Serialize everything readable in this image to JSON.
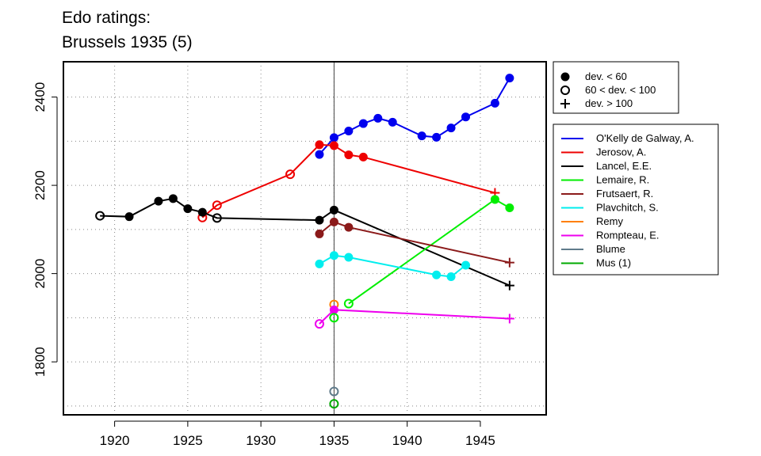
{
  "chart_data": {
    "type": "line",
    "title_line1": "Edo ratings:",
    "title_line2": "Brussels 1935 (5)",
    "xlabel": "",
    "ylabel": "",
    "xlim": [
      1916.5,
      1949.5
    ],
    "ylim": [
      1680,
      2480
    ],
    "xticks": [
      1920,
      1925,
      1930,
      1935,
      1940,
      1945
    ],
    "yticks": [
      1800,
      2000,
      2200,
      2400
    ],
    "grid": true,
    "reference_line_x": 1935,
    "marker_legend": [
      {
        "symbol": "filled",
        "label": "dev. < 60"
      },
      {
        "symbol": "open",
        "label": "60 < dev. < 100"
      },
      {
        "symbol": "plus",
        "label": "dev. > 100"
      }
    ],
    "legend_placement": "right",
    "series": [
      {
        "name": "O'Kelly de Galway, A.",
        "color": "#0000ee",
        "points": [
          [
            1934,
            2270,
            "f"
          ],
          [
            1935,
            2308,
            "f"
          ],
          [
            1936,
            2323,
            "f"
          ],
          [
            1937,
            2340,
            "f"
          ],
          [
            1938,
            2352,
            "f"
          ],
          [
            1939,
            2343,
            "f"
          ],
          [
            1941,
            2312,
            "f"
          ],
          [
            1942,
            2309,
            "f"
          ],
          [
            1943,
            2330,
            "f"
          ],
          [
            1944,
            2355,
            "f"
          ],
          [
            1946,
            2386,
            "f"
          ],
          [
            1947,
            2443,
            "f"
          ]
        ]
      },
      {
        "name": "Jerosov, A.",
        "color": "#ee0000",
        "points": [
          [
            1926,
            2127,
            "o"
          ],
          [
            1927,
            2155,
            "o"
          ],
          [
            1932,
            2225,
            "o"
          ],
          [
            1934,
            2292,
            "f"
          ],
          [
            1935,
            2290,
            "f"
          ],
          [
            1936,
            2269,
            "f"
          ],
          [
            1937,
            2264,
            "f"
          ],
          [
            1946,
            2183,
            "p"
          ]
        ]
      },
      {
        "name": "Lancel, E.E.",
        "color": "#000000",
        "points": [
          [
            1919,
            2131,
            "o"
          ],
          [
            1921,
            2129,
            "f"
          ],
          [
            1923,
            2164,
            "f"
          ],
          [
            1924,
            2170,
            "f"
          ],
          [
            1925,
            2147,
            "f"
          ],
          [
            1926,
            2139,
            "f"
          ],
          [
            1927,
            2126,
            "o"
          ],
          [
            1934,
            2121,
            "f"
          ],
          [
            1935,
            2144,
            "f"
          ],
          [
            1947,
            1973,
            "p"
          ]
        ]
      },
      {
        "name": "Lemaire, R.",
        "color": "#00ee00",
        "points": [
          [
            1936,
            1932,
            "o"
          ],
          [
            1946,
            2168,
            "f"
          ],
          [
            1947,
            2149,
            "f"
          ]
        ]
      },
      {
        "name": "Frutsaert, R.",
        "color": "#8b1a1a",
        "points": [
          [
            1934,
            2090,
            "f"
          ],
          [
            1935,
            2117,
            "f"
          ],
          [
            1936,
            2105,
            "f"
          ],
          [
            1947,
            2025,
            "p"
          ]
        ]
      },
      {
        "name": "Plavchitch, S.",
        "color": "#00eeee",
        "points": [
          [
            1934,
            2022,
            "f"
          ],
          [
            1935,
            2041,
            "f"
          ],
          [
            1936,
            2037,
            "f"
          ],
          [
            1942,
            1997,
            "f"
          ],
          [
            1943,
            1993,
            "f"
          ],
          [
            1944,
            2019,
            "f"
          ]
        ]
      },
      {
        "name": "Remy",
        "color": "#ff7f00",
        "points": [
          [
            1935,
            1930,
            "o"
          ]
        ]
      },
      {
        "name": "Rompteau, E.",
        "color": "#ee00ee",
        "points": [
          [
            1934,
            1886,
            "o"
          ],
          [
            1935,
            1918,
            "f"
          ],
          [
            1947,
            1898,
            "p"
          ]
        ]
      },
      {
        "name": "Blume",
        "color": "#607b8b",
        "points": [
          [
            1935,
            1733,
            "o"
          ]
        ]
      },
      {
        "name": "Mus (1)",
        "color": "#00aa00",
        "points": [
          [
            1935,
            1705,
            "o"
          ]
        ]
      }
    ],
    "overlay_points": [
      {
        "series": "Lemaire, R.",
        "point": [
          1935,
          1900,
          "o"
        ]
      }
    ]
  }
}
